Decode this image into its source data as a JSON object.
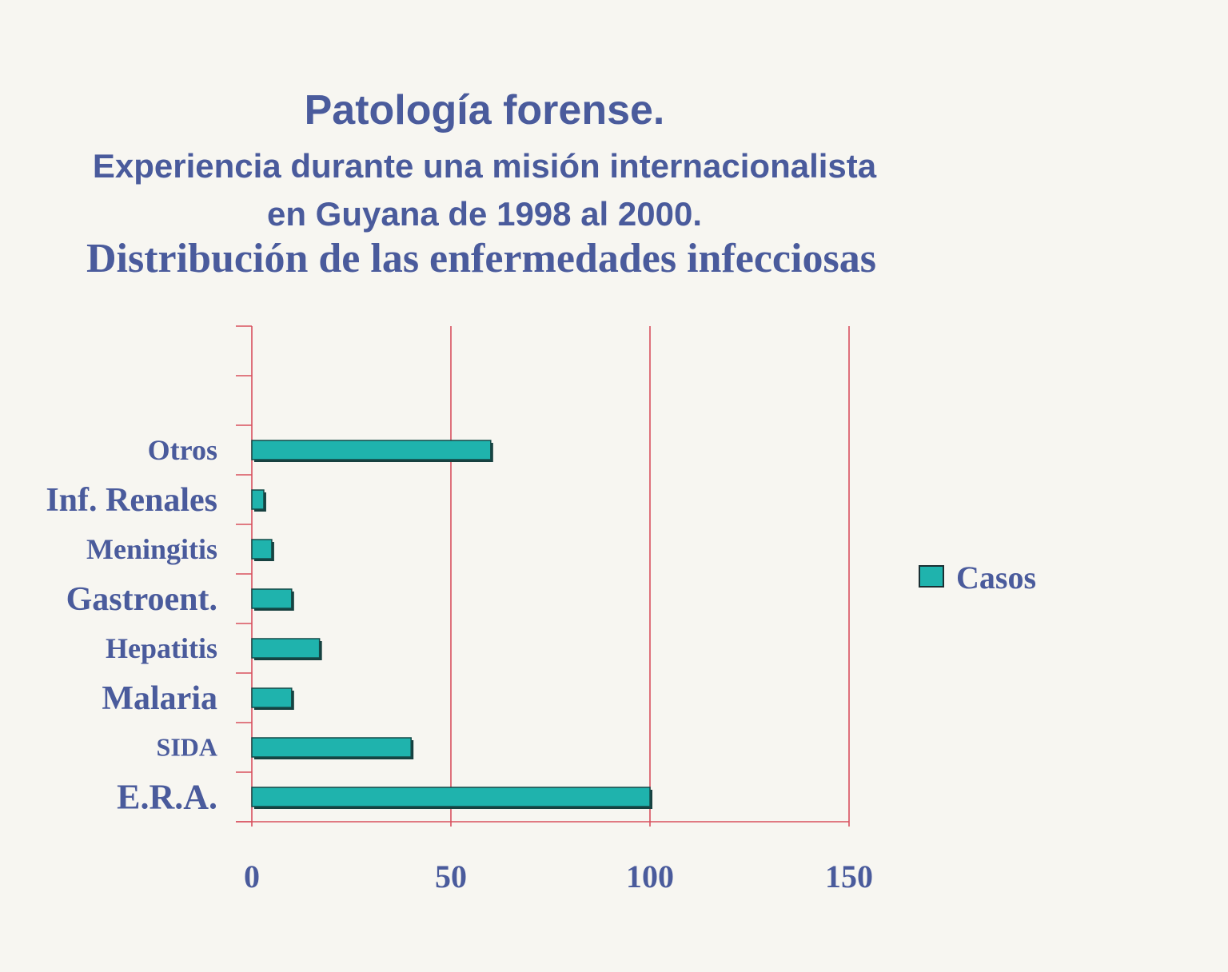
{
  "title": {
    "line1": "Patología forense.",
    "line2": "Experiencia durante una misión internacionalista",
    "line3": "en Guyana de 1998 al  2000.",
    "line4": "Distribución de las enfermedades infecciosas"
  },
  "colors": {
    "bar": "#1fb3ad",
    "grid": "#d8505e",
    "text": "#4a5b9c"
  },
  "chart_data": {
    "type": "bar",
    "orientation": "horizontal",
    "categories": [
      "E.R.A.",
      "SIDA",
      "Malaria",
      "Hepatitis",
      "Gastroent.",
      "Meningitis",
      "Inf. Renales",
      "Otros"
    ],
    "series": [
      {
        "name": "Casos",
        "values": [
          100,
          40,
          10,
          17,
          10,
          5,
          3,
          60
        ]
      }
    ],
    "xlim": [
      0,
      150
    ],
    "xticks": [
      "0",
      "50",
      "100",
      "150"
    ],
    "grid": true,
    "legend": "right"
  }
}
